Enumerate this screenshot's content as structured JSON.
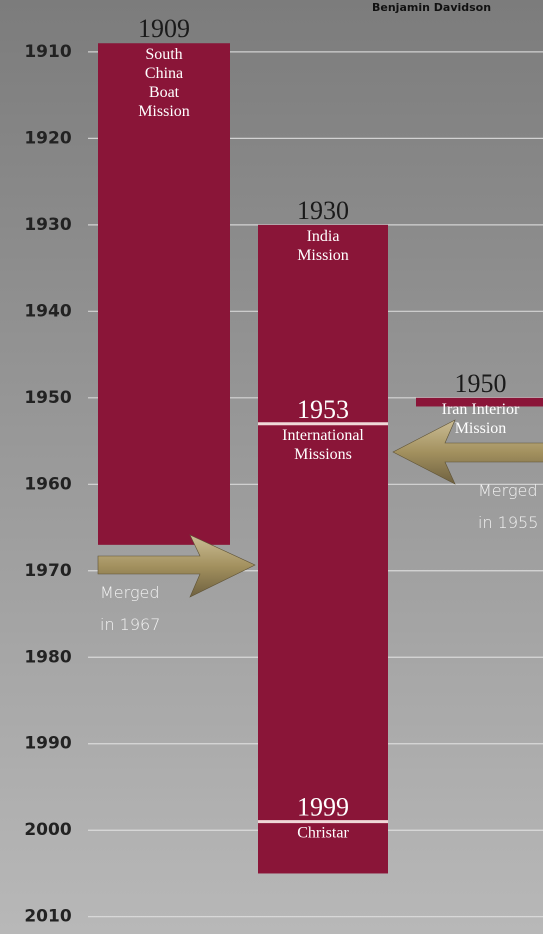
{
  "chart_data": {
    "type": "timeline",
    "credit": "Benjamin Davidson",
    "ylim": [
      1904,
      2012
    ],
    "yticks": [
      1910,
      1920,
      1930,
      1940,
      1950,
      1960,
      1970,
      1980,
      1990,
      2000,
      2010
    ],
    "grid": true,
    "color": "#8a1538",
    "bars": [
      {
        "segments": [
          {
            "start": 1909,
            "end": 1967,
            "label": [
              "South",
              "China",
              "Boat",
              "Mission"
            ]
          }
        ]
      },
      {
        "segments": [
          {
            "start": 1930,
            "end": 1953,
            "label": [
              "India",
              "Mission"
            ]
          },
          {
            "start": 1953,
            "end": 1999,
            "label": [
              "International",
              "Missions"
            ]
          },
          {
            "start": 1999,
            "end": 2005,
            "label": [
              "Christar"
            ]
          }
        ]
      },
      {
        "segments": [
          {
            "start": 1950,
            "end": 1951,
            "label": [
              "Iran Interior",
              "Mission"
            ]
          }
        ]
      }
    ],
    "notes": [
      {
        "lines": [
          "Merged",
          "in 1967"
        ]
      },
      {
        "lines": [
          "Merged",
          "in 1955"
        ]
      }
    ]
  }
}
